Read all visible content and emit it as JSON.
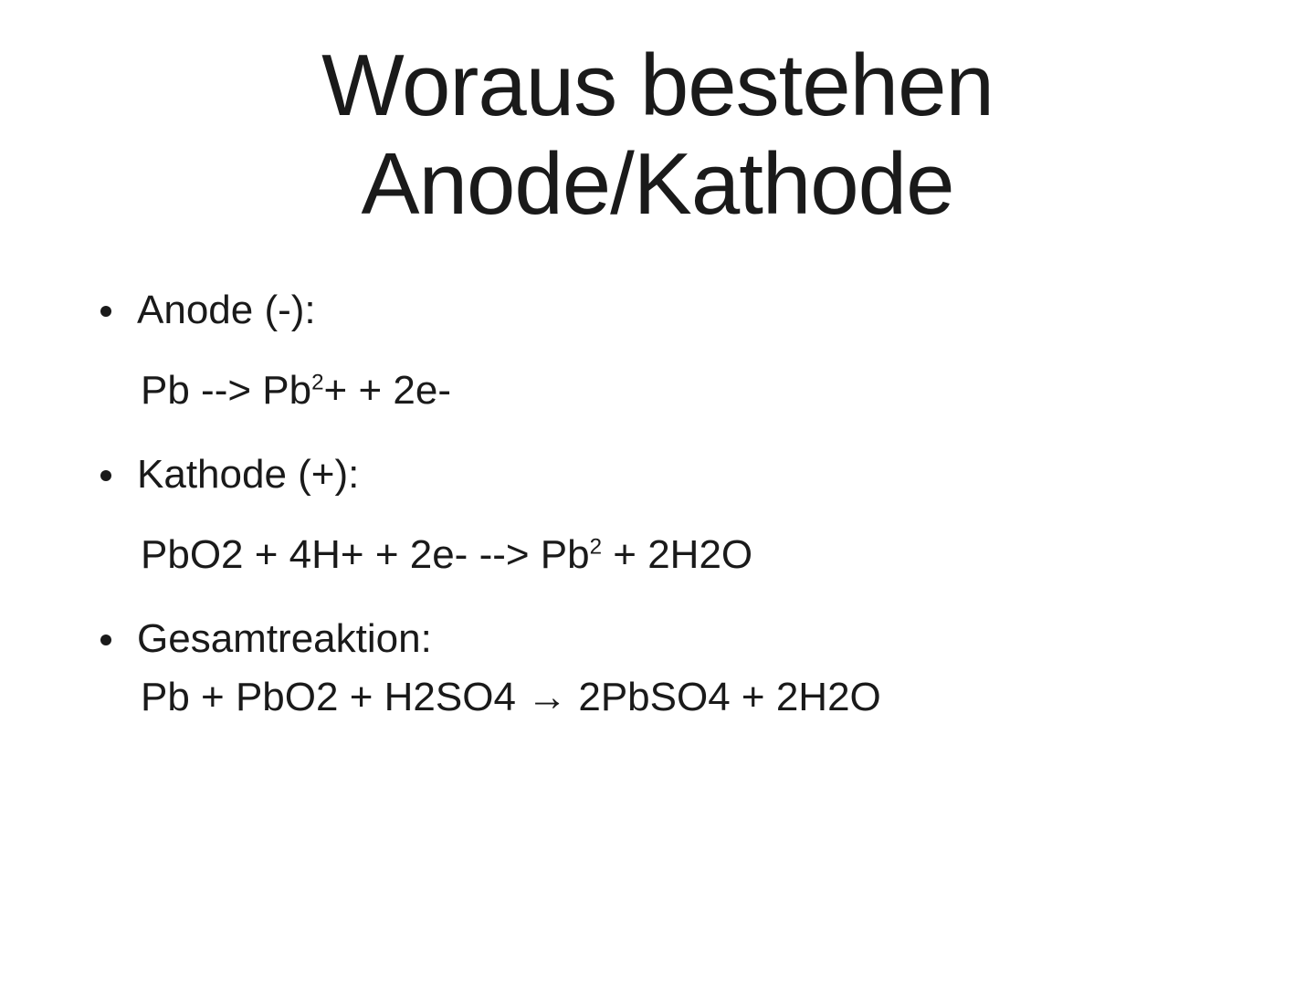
{
  "slide": {
    "title_line1": "Woraus bestehen",
    "title_line2": "Anode/Kathode",
    "title_fontsize": 96,
    "title_color": "#1a1a1a",
    "body_fontsize": 44,
    "body_color": "#1a1a1a",
    "background_color": "#ffffff",
    "items": [
      {
        "label": "Anode (-):",
        "equation_before_sup": "Pb --> Pb",
        "equation_sup": "2",
        "equation_after_sup": "+ + 2e-",
        "tight": false
      },
      {
        "label": "Kathode (+):",
        "equation_before_sup": "PbO2 + 4H+ + 2e- --> Pb",
        "equation_sup": "2",
        "equation_after_sup": " + 2H2O",
        "tight": false
      },
      {
        "label": "Gesamtreaktion:",
        "equation_before_sup": "Pb + PbO2 + H2SO4 → 2PbSO4 + 2H2O",
        "equation_sup": "",
        "equation_after_sup": "",
        "tight": true
      }
    ]
  }
}
